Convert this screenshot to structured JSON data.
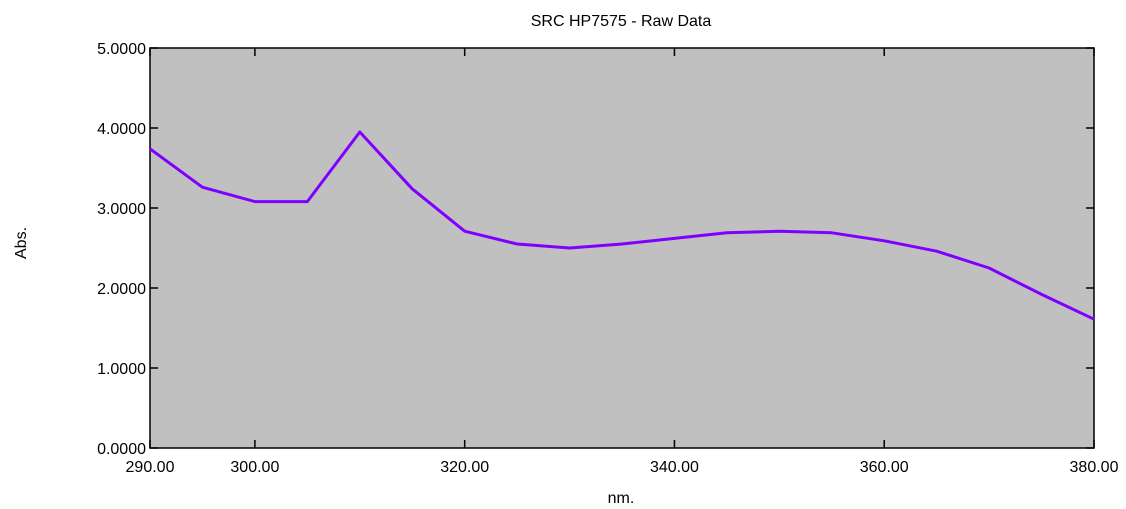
{
  "chart_data": {
    "type": "line",
    "title": "SRC HP7575 - Raw Data",
    "xlabel": "nm.",
    "ylabel": "Abs.",
    "xlim": [
      290,
      380
    ],
    "ylim": [
      0,
      5
    ],
    "x_ticks": [
      290,
      300,
      320,
      340,
      360,
      380
    ],
    "x_tick_labels": [
      "290.00",
      "300.00",
      "320.00",
      "340.00",
      "360.00",
      "380.00"
    ],
    "y_ticks": [
      0,
      1,
      2,
      3,
      4,
      5
    ],
    "y_tick_labels": [
      "0.0000",
      "1.0000",
      "2.0000",
      "3.0000",
      "4.0000",
      "5.0000"
    ],
    "grid": false,
    "colors": {
      "plot_background": "#c0c0c0",
      "line": "#7f00ff"
    },
    "series": [
      {
        "x": [
          290,
          295,
          300,
          305,
          310,
          315,
          320,
          325,
          330,
          335,
          340,
          345,
          350,
          355,
          360,
          365,
          370,
          375,
          380
        ],
        "y": [
          3.74,
          3.26,
          3.08,
          3.08,
          3.95,
          3.24,
          2.71,
          2.55,
          2.5,
          2.55,
          2.62,
          2.69,
          2.71,
          2.69,
          2.59,
          2.46,
          2.25,
          1.92,
          1.61
        ]
      }
    ]
  }
}
